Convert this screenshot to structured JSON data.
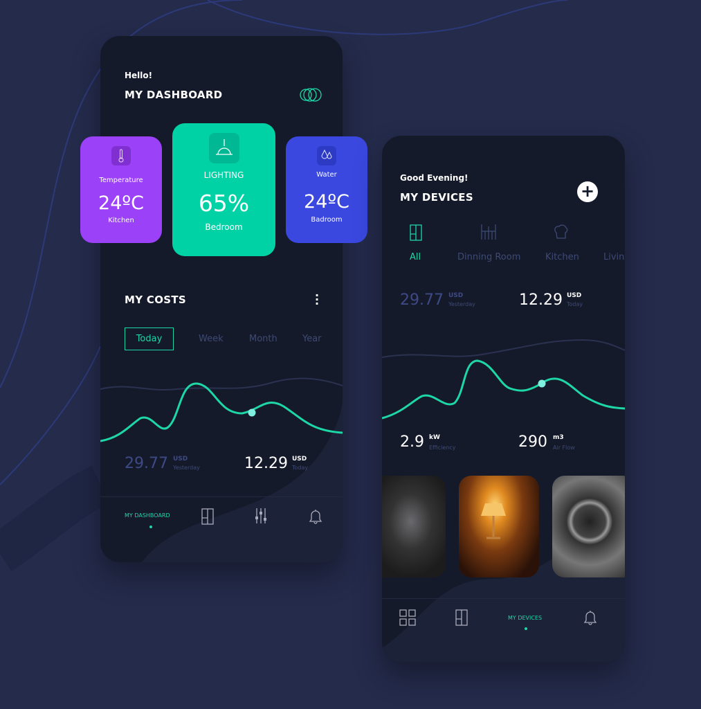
{
  "dashboard": {
    "greeting": "Hello!",
    "title": "MY DASHBOARD",
    "cards": [
      {
        "label": "Temperature",
        "value": "24ºC",
        "room": "Kitchen",
        "color": "#9b41f7",
        "icon": "thermometer-icon"
      },
      {
        "label": "LIGHTING",
        "value": "65%",
        "room": "Bedroom",
        "color": "#00d2a6",
        "icon": "pendant-lamp-icon"
      },
      {
        "label": "Water",
        "value": "24ºC",
        "room": "Badroom",
        "color": "#3a48e0",
        "icon": "water-drops-icon"
      }
    ],
    "costs": {
      "title": "MY COSTS",
      "tabs": [
        "Today",
        "Week",
        "Month",
        "Year"
      ],
      "active_tab": "Today",
      "yesterday": {
        "value": "29.77",
        "unit": "USD",
        "label": "Yesterday"
      },
      "today": {
        "value": "12.29",
        "unit": "USD",
        "label": "Today"
      }
    },
    "nav": {
      "active": "MY DASHBOARD"
    }
  },
  "devices": {
    "greeting": "Good Evening!",
    "title": "MY DEVICES",
    "rooms": [
      "All",
      "Dinning Room",
      "Kitchen",
      "Living"
    ],
    "active_room": "All",
    "yesterday": {
      "value": "29.77",
      "unit": "USD",
      "label": "Yesterday"
    },
    "today": {
      "value": "12.29",
      "unit": "USD",
      "label": "Today"
    },
    "efficiency": {
      "value": "2.9",
      "unit": "kW",
      "label": "Efficiency"
    },
    "airflow": {
      "value": "290",
      "unit": "m3",
      "label": "Air Flow"
    },
    "nav": {
      "active": "MY DEVICES"
    }
  },
  "colors": {
    "accent": "#1ed7a7",
    "background": "#242b4b",
    "panel": "#151a2b"
  }
}
